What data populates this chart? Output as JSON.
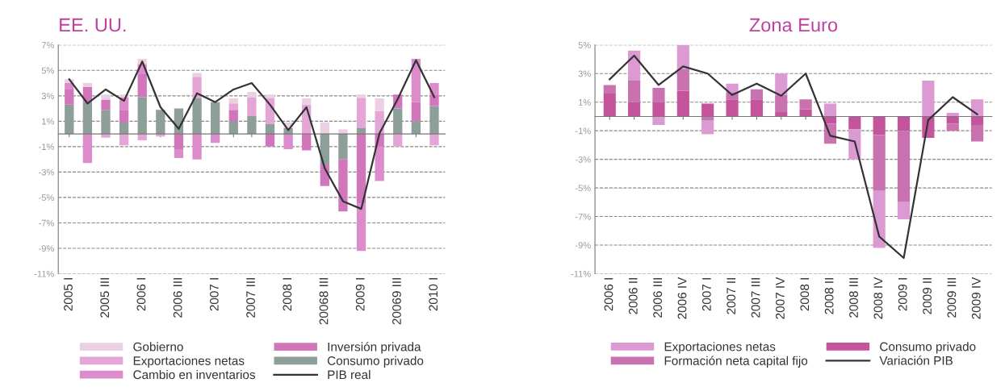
{
  "chart_data": [
    {
      "type": "bar",
      "title": "EE. UU.",
      "stacked": true,
      "grid": "y",
      "legend": "bottom",
      "categories": [
        "2005 I",
        null,
        "2005 III",
        null,
        "2006 I",
        null,
        "2006 III",
        null,
        "2007 I",
        null,
        "2007 III",
        null,
        "2008 I",
        null,
        "20068 III",
        null,
        "2009 I",
        null,
        "20069 III",
        null,
        "2010 I"
      ],
      "ylim": [
        -11,
        7
      ],
      "yticks": [
        {
          "value": -11,
          "label": "-11%"
        },
        {
          "value": -9,
          "label": "-9%"
        },
        {
          "value": -7,
          "label": "-7%"
        },
        {
          "value": -5,
          "label": "-5%"
        },
        {
          "value": -3,
          "label": "-3%"
        },
        {
          "value": -1,
          "label": "-1%"
        },
        {
          "value": 1,
          "label": "1%"
        },
        {
          "value": 3,
          "label": "3%"
        },
        {
          "value": 5,
          "label": "5%"
        },
        {
          "value": 7,
          "label": "7%"
        }
      ],
      "series": [
        {
          "name": "Consumo privado",
          "color": "#8e9e98",
          "values": [
            2.3,
            2.5,
            1.9,
            0.9,
            2.9,
            1.9,
            2.0,
            2.8,
            2.5,
            1.0,
            1.4,
            0.8,
            0.45,
            0,
            -2.4,
            -2.0,
            0.45,
            0,
            2.0,
            1.0,
            2.2
          ]
        },
        {
          "name": "Inversión privada",
          "color": "#d276bc",
          "values": [
            1.2,
            1.2,
            0.8,
            1.0,
            1.8,
            0,
            -1.2,
            0,
            0,
            0.9,
            0,
            -1.0,
            0,
            -1.3,
            -1.7,
            -4.1,
            -5.5,
            -1.0,
            1.1,
            1.5,
            0.9
          ]
        },
        {
          "name": "Cambio en inventarios",
          "color": "#dc8cca",
          "values": [
            0.5,
            -2.3,
            0,
            1.0,
            0.8,
            0,
            -0.7,
            -2.0,
            -0.7,
            0,
            0,
            0,
            -1.2,
            0,
            0,
            0,
            -3.7,
            -2.7,
            0,
            3.4,
            0.9
          ]
        },
        {
          "name": "Exportaciones netas",
          "color": "#e4a6d6",
          "values": [
            0,
            0,
            -0.3,
            -0.9,
            -0.5,
            -0.2,
            0,
            1.7,
            0,
            0.5,
            1.5,
            2.0,
            0,
            2.3,
            0,
            0,
            2.4,
            1.8,
            -1.0,
            0,
            -0.9
          ]
        },
        {
          "name": "Gobierno",
          "color": "#ead0e2",
          "values": [
            0.3,
            0.3,
            0.4,
            0.2,
            0.4,
            0,
            0,
            0.3,
            0,
            0.4,
            0.4,
            0.3,
            0.45,
            0.5,
            0.9,
            0.35,
            0.25,
            1.0,
            0,
            0,
            0
          ]
        },
        {
          "name": "PIB real",
          "type": "line",
          "color": "#333333",
          "line_style": "solid",
          "values": [
            4.3,
            2.4,
            3.5,
            2.6,
            5.7,
            2.1,
            0.4,
            3.2,
            2.5,
            3.5,
            4.0,
            2.3,
            0.3,
            2.1,
            -2.7,
            -5.3,
            -5.9,
            0.05,
            2.75,
            5.8,
            2.9
          ]
        }
      ]
    },
    {
      "type": "bar",
      "title": "Zona Euro",
      "stacked": true,
      "grid": "y",
      "legend": "bottom",
      "categories": [
        "2006 I",
        "2006 II",
        "2006 III",
        "2006 IV",
        "2007 I",
        "2007 II",
        "2007 III",
        "2007 IV",
        "2008 I",
        "2008 II",
        "2008 III",
        "2008 IV",
        "2009 I",
        "2009 II",
        "2009 III",
        "2009 IV"
      ],
      "ylim": [
        -11,
        5
      ],
      "yticks": [
        {
          "value": -11,
          "label": "-11%"
        },
        {
          "value": -9,
          "label": "-9%"
        },
        {
          "value": -7,
          "label": "-7%"
        },
        {
          "value": -5,
          "label": "-5%"
        },
        {
          "value": -3,
          "label": "-3%"
        },
        {
          "value": -1,
          "label": "-1%"
        },
        {
          "value": 1,
          "label": "1%"
        },
        {
          "value": 3,
          "label": "3%"
        },
        {
          "value": 5,
          "label": "5%"
        }
      ],
      "series": [
        {
          "name": "Consumo privado",
          "color": "#c4559c",
          "values": [
            1.6,
            1.0,
            1.0,
            1.8,
            0.9,
            1.2,
            1.2,
            0.3,
            0.5,
            -0.5,
            -0.9,
            -1.3,
            -1.0,
            -1.5,
            -0.5,
            -0.6
          ]
        },
        {
          "name": "Formación neta capital fijo",
          "color": "#c872b0",
          "values": [
            0.6,
            1.5,
            1.0,
            1.5,
            -0.3,
            0.5,
            0.7,
            1.2,
            0.7,
            -1.4,
            0,
            -3.9,
            -5.0,
            0,
            -0.5,
            -1.15
          ]
        },
        {
          "name": "Exportaciones netas",
          "color": "#dc9ad2",
          "values": [
            0,
            2.1,
            -0.6,
            1.7,
            -0.95,
            0.6,
            0,
            1.5,
            0,
            0.9,
            -2.1,
            -4.0,
            -1.2,
            2.5,
            0.25,
            1.2
          ]
        },
        {
          "name": "Variación PIB",
          "type": "line",
          "color": "#333333",
          "line_style": "solid",
          "values": [
            2.6,
            4.25,
            2.2,
            3.5,
            3.0,
            1.5,
            2.3,
            1.45,
            3.0,
            -1.35,
            -1.75,
            -8.4,
            -9.9,
            -0.25,
            1.35,
            0.15
          ]
        }
      ]
    }
  ]
}
